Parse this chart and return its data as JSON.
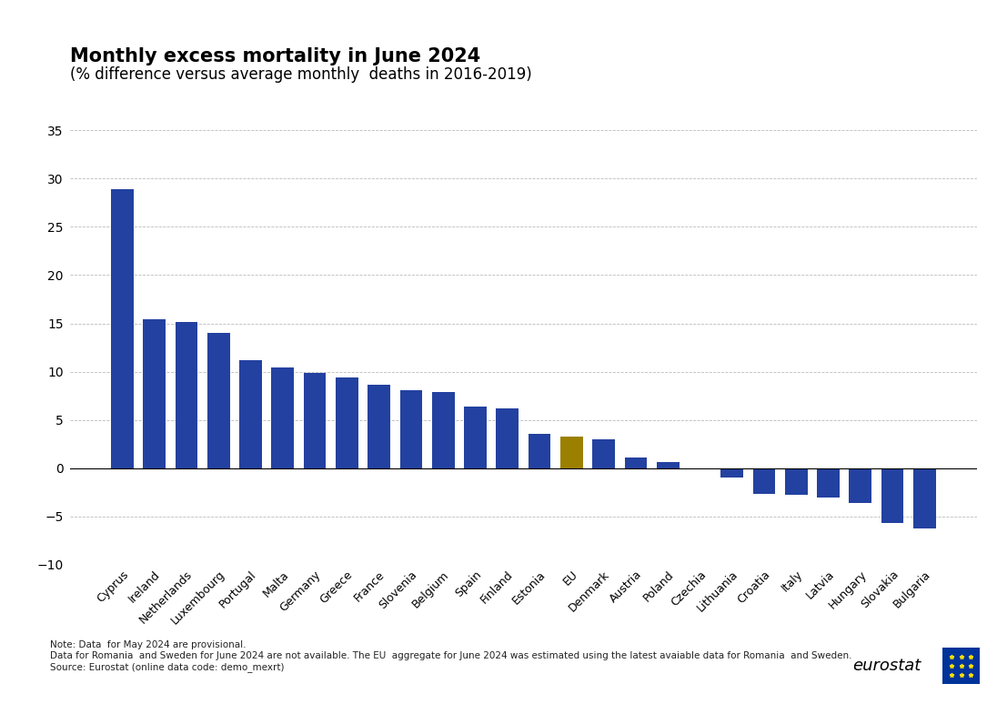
{
  "title": "Monthly excess mortality in June 2024",
  "subtitle": "(% difference versus average monthly  deaths in 2016-2019)",
  "categories": [
    "Cyprus",
    "Ireland",
    "Netherlands",
    "Luxembourg",
    "Portugal",
    "Malta",
    "Germany",
    "Greece",
    "France",
    "Slovenia",
    "Belgium",
    "Spain",
    "Finland",
    "Estonia",
    "EU",
    "Denmark",
    "Austria",
    "Poland",
    "Czechia",
    "Lithuania",
    "Croatia",
    "Italy",
    "Latvia",
    "Hungary",
    "Slovakia",
    "Bulgaria"
  ],
  "values": [
    28.9,
    15.4,
    15.1,
    14.0,
    11.2,
    10.4,
    9.9,
    9.4,
    8.6,
    8.1,
    7.9,
    6.4,
    6.2,
    3.6,
    3.3,
    3.0,
    1.1,
    0.6,
    -0.1,
    -1.0,
    -2.7,
    -2.8,
    -3.0,
    -3.6,
    -5.7,
    -6.2
  ],
  "bar_colors": [
    "#2341a0",
    "#2341a0",
    "#2341a0",
    "#2341a0",
    "#2341a0",
    "#2341a0",
    "#2341a0",
    "#2341a0",
    "#2341a0",
    "#2341a0",
    "#2341a0",
    "#2341a0",
    "#2341a0",
    "#2341a0",
    "#9b8000",
    "#2341a0",
    "#2341a0",
    "#2341a0",
    "#2341a0",
    "#2341a0",
    "#2341a0",
    "#2341a0",
    "#2341a0",
    "#2341a0",
    "#2341a0",
    "#2341a0"
  ],
  "ylim": [
    -10,
    35
  ],
  "yticks": [
    -10,
    -5,
    0,
    5,
    10,
    15,
    20,
    25,
    30,
    35
  ],
  "note1": "Note: Data  for May 2024 are provisional.",
  "note2": "Data for Romania  and Sweden for June 2024 are not available. The EU  aggregate for June 2024 was estimated using the latest avaiable data for Romania  and Sweden.",
  "note3": "Source: Eurostat (online data code: demo_mexrt)",
  "grid_color": "#bbbbbb",
  "bar_color_default": "#2341a0",
  "bar_color_eu": "#9b8000",
  "title_fontsize": 15,
  "subtitle_fontsize": 12,
  "note_fontsize": 7.5,
  "tick_fontsize": 10,
  "xlabel_fontsize": 9
}
